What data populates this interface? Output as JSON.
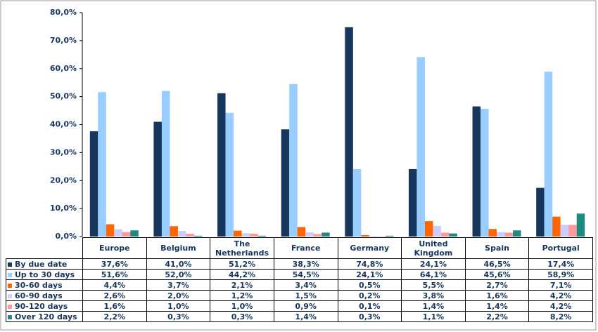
{
  "chart_data": {
    "type": "bar",
    "categories": [
      "Europe",
      "Belgium",
      "The Netherlands",
      "France",
      "Germany",
      "United Kingdom",
      "Spain",
      "Portugal"
    ],
    "series": [
      {
        "name": "By due date",
        "color": "#17365d",
        "values": [
          37.6,
          41.0,
          51.2,
          38.3,
          74.8,
          24.1,
          46.5,
          17.4
        ],
        "value_labels": [
          "37,6%",
          "41,0%",
          "51,2%",
          "38,3%",
          "74,8%",
          "24,1%",
          "46,5%",
          "17,4%"
        ]
      },
      {
        "name": "Up to 30 days",
        "color": "#99ccff",
        "values": [
          51.6,
          52.0,
          44.2,
          54.5,
          24.1,
          64.1,
          45.6,
          58.9
        ],
        "value_labels": [
          "51,6%",
          "52,0%",
          "44,2%",
          "54,5%",
          "24,1%",
          "64,1%",
          "45,6%",
          "58,9%"
        ]
      },
      {
        "name": "30-60 days",
        "color": "#ff6600",
        "values": [
          4.4,
          3.7,
          2.1,
          3.4,
          0.5,
          5.5,
          2.7,
          7.1
        ],
        "value_labels": [
          "4,4%",
          "3,7%",
          "2,1%",
          "3,4%",
          "0,5%",
          "5,5%",
          "2,7%",
          "7,1%"
        ]
      },
      {
        "name": "60-90 days",
        "color": "#ccccff",
        "values": [
          2.6,
          2.0,
          1.2,
          1.5,
          0.2,
          3.8,
          1.6,
          4.2
        ],
        "value_labels": [
          "2,6%",
          "2,0%",
          "1,2%",
          "1,5%",
          "0,2%",
          "3,8%",
          "1,6%",
          "4,2%"
        ]
      },
      {
        "name": "90-120 days",
        "color": "#ff9999",
        "values": [
          1.6,
          1.0,
          1.0,
          0.9,
          0.1,
          1.4,
          1.4,
          4.2
        ],
        "value_labels": [
          "1,6%",
          "1,0%",
          "1,0%",
          "0,9%",
          "0,1%",
          "1,4%",
          "1,4%",
          "4,2%"
        ]
      },
      {
        "name": "Over 120 days",
        "color": "#1f8a80",
        "values": [
          2.2,
          0.3,
          0.3,
          1.4,
          0.3,
          1.1,
          2.2,
          8.2
        ],
        "value_labels": [
          "2,2%",
          "0,3%",
          "0,3%",
          "1,4%",
          "0,3%",
          "1,1%",
          "2,2%",
          "8,2%"
        ]
      }
    ],
    "ylim": [
      0,
      80
    ],
    "yticks": [
      {
        "value": 0,
        "label": "0,0%"
      },
      {
        "value": 10,
        "label": "10,0%"
      },
      {
        "value": 20,
        "label": "20,0%"
      },
      {
        "value": 30,
        "label": "30,0%"
      },
      {
        "value": 40,
        "label": "40,0%"
      },
      {
        "value": 50,
        "label": "50,0%"
      },
      {
        "value": 60,
        "label": "60,0%"
      },
      {
        "value": 70,
        "label": "70,0%"
      },
      {
        "value": 80,
        "label": "80,0%"
      }
    ],
    "grid": false
  }
}
